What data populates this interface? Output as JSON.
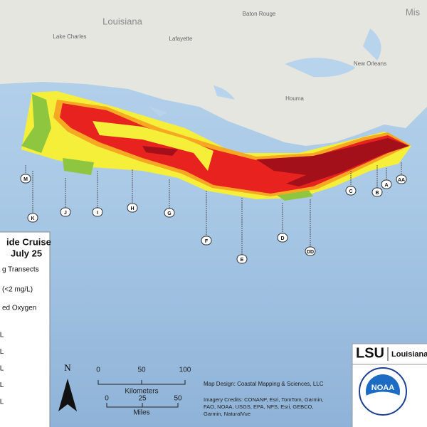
{
  "places": [
    {
      "label": "Louisiana"
    },
    {
      "label": "Baton Rouge"
    },
    {
      "label": "Lake Charles"
    },
    {
      "label": "Lafayette"
    },
    {
      "label": "Houma"
    },
    {
      "label": "New Orleans"
    },
    {
      "label": "Mis"
    }
  ],
  "transects": [
    {
      "label": "M"
    },
    {
      "label": "K"
    },
    {
      "label": "J"
    },
    {
      "label": "I"
    },
    {
      "label": "H"
    },
    {
      "label": "G"
    },
    {
      "label": "F"
    },
    {
      "label": "E"
    },
    {
      "label": "D"
    },
    {
      "label": "DD"
    },
    {
      "label": "C"
    },
    {
      "label": "B"
    },
    {
      "label": "A"
    },
    {
      "label": "AA"
    }
  ],
  "legend": {
    "title": [
      "ide Cruise",
      "July 25"
    ],
    "items": [
      "g Transects",
      "(<2 mg/L)",
      "ed Oxygen"
    ],
    "classes": [
      "/L",
      "/L",
      "/L",
      "/L",
      "/L"
    ]
  },
  "scale": {
    "north": "N",
    "km_ticks": [
      "0",
      "50",
      "100"
    ],
    "km_label": "Kilometers",
    "mi_ticks": [
      "0",
      "25",
      "50"
    ],
    "mi_label": "Miles"
  },
  "credits": {
    "design": "Map Design: Coastal Mapping & Sciences, LLC",
    "imagery": [
      "Imagery Credits: CONANP, Esri, TomTom, Garmin,",
      "FAO, NOAA, USGS, EPA, NPS, Esri, GEBCO,",
      "Garmin, NaturalVue"
    ]
  },
  "logos": {
    "lsu": "LSU",
    "lsu_name": "Louisiana",
    "noaa": "NOAA"
  }
}
